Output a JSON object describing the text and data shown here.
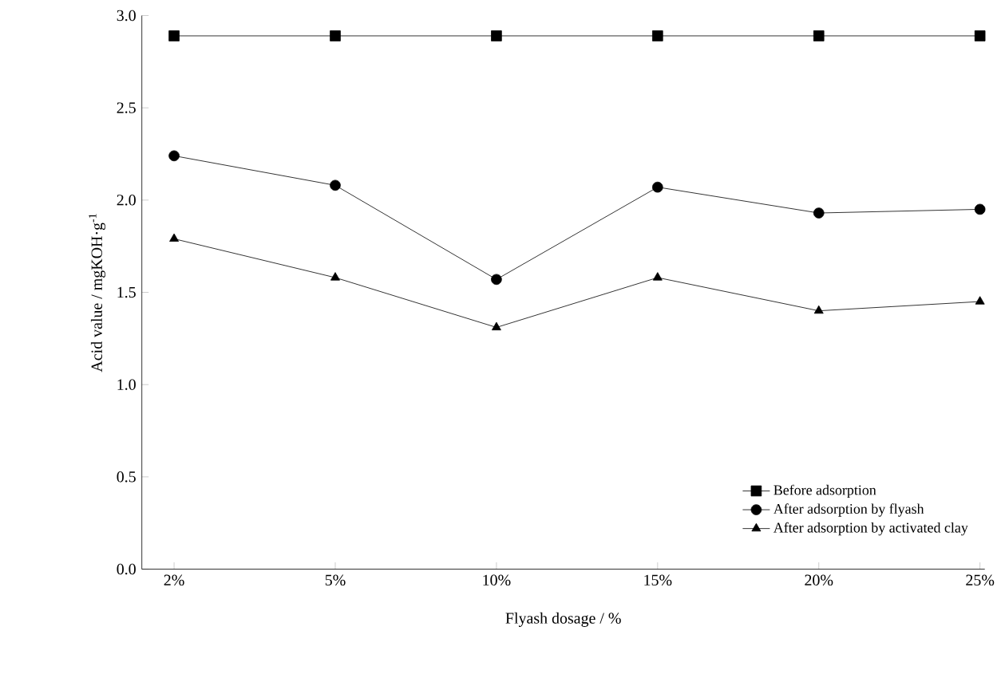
{
  "chart_data": {
    "type": "line",
    "xlabel": "Flyash dosage  / %",
    "ylabel": "Acid value / mgKOH·g$^{-1}$",
    "categories": [
      "2%",
      "5%",
      "10%",
      "15%",
      "20%",
      "25%"
    ],
    "series": [
      {
        "name": "Before adsorption",
        "color": "#000000",
        "marker": "square",
        "values": [
          2.89,
          2.89,
          2.89,
          2.89,
          2.89,
          2.89
        ]
      },
      {
        "name": "After adsorption by flyash",
        "color": "#000000",
        "marker": "circle",
        "values": [
          2.24,
          2.08,
          1.57,
          2.07,
          1.93,
          1.95
        ]
      },
      {
        "name": "After adsorption by activated clay",
        "color": "#000000",
        "marker": "triangle",
        "values": [
          1.79,
          1.58,
          1.31,
          1.58,
          1.4,
          1.45
        ]
      }
    ],
    "ylim": [
      0,
      3.0
    ],
    "yticks": [
      {
        "value": 0,
        "label": "0.0"
      },
      {
        "value": 0.5,
        "label": "0.5"
      },
      {
        "value": 1.0,
        "label": "1.0"
      },
      {
        "value": 1.5,
        "label": "1.5"
      },
      {
        "value": 2.0,
        "label": "2.0"
      },
      {
        "value": 2.5,
        "label": "2.5"
      },
      {
        "value": 3.0,
        "label": "3.0"
      }
    ],
    "grid": false,
    "legend": "bottom right",
    "line_style": "solid"
  }
}
